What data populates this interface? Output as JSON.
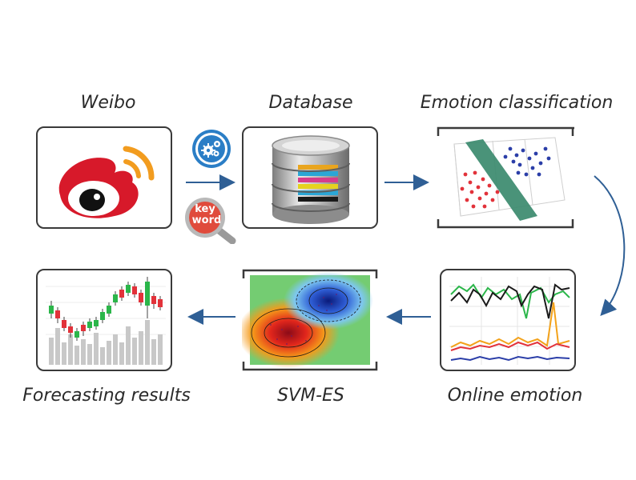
{
  "labels": {
    "weibo": "Weibo",
    "database": "Database",
    "emotion_classification": "Emotion classification",
    "online_emotion": "Online emotion",
    "svm_es": "SVM-ES",
    "forecasting_results": "Forecasting results"
  },
  "keyword_badge": {
    "line1": "key",
    "line2": "word"
  },
  "colors": {
    "frame": "#3a3a3a",
    "arrow": "#2f5f95",
    "weibo_red": "#d7192a",
    "weibo_orange": "#f29c1f",
    "gear_blue": "#2b7ec6",
    "plane_green": "#3b8a6e"
  },
  "icons": [
    "weibo-logo-icon",
    "gear-cluster-icon",
    "keyword-magnifier-icon",
    "database-cylinder-icon"
  ]
}
